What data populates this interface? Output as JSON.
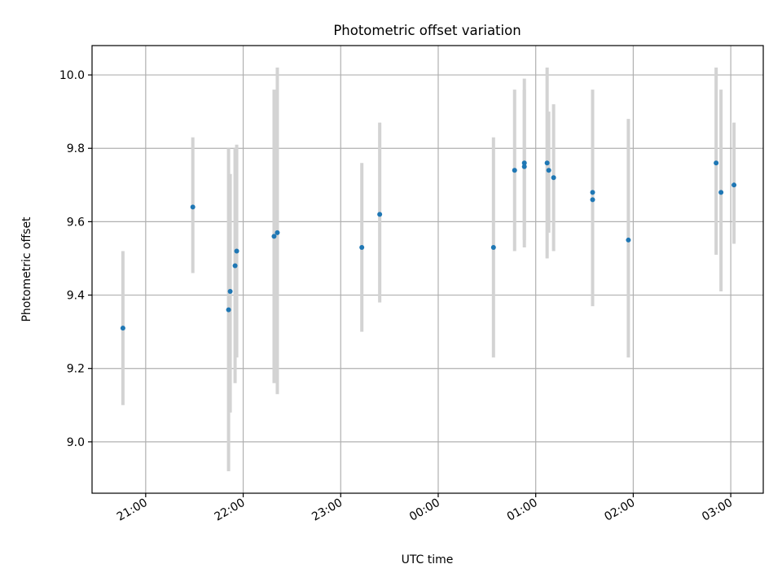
{
  "chart_data": {
    "type": "scatter",
    "title": "Photometric offset variation",
    "xlabel": "UTC time",
    "ylabel": "Photometric offset",
    "x_unit": "UTC time (HH:MM)",
    "xlim": [
      "20:27",
      "03:20"
    ],
    "ylim": [
      8.86,
      10.08
    ],
    "xticks": [
      "21:00",
      "22:00",
      "23:00",
      "00:00",
      "01:00",
      "02:00",
      "03:00"
    ],
    "yticks": [
      "9.0",
      "9.2",
      "9.4",
      "9.6",
      "9.8",
      "10.0"
    ],
    "grid": true,
    "points": [
      {
        "x": "20:46",
        "y": 9.31,
        "err_low": 9.1,
        "err_high": 9.52
      },
      {
        "x": "21:29",
        "y": 9.64,
        "err_low": 9.46,
        "err_high": 9.83
      },
      {
        "x": "21:51",
        "y": 9.36,
        "err_low": 8.92,
        "err_high": 9.8
      },
      {
        "x": "21:52",
        "y": 9.41,
        "err_low": 9.08,
        "err_high": 9.73
      },
      {
        "x": "21:55",
        "y": 9.48,
        "err_low": 9.16,
        "err_high": 9.8
      },
      {
        "x": "21:56",
        "y": 9.52,
        "err_low": 9.23,
        "err_high": 9.81
      },
      {
        "x": "22:19",
        "y": 9.56,
        "err_low": 9.16,
        "err_high": 9.96
      },
      {
        "x": "22:21",
        "y": 9.57,
        "err_low": 9.13,
        "err_high": 10.02
      },
      {
        "x": "23:13",
        "y": 9.53,
        "err_low": 9.3,
        "err_high": 9.76
      },
      {
        "x": "23:24",
        "y": 9.62,
        "err_low": 9.38,
        "err_high": 9.87
      },
      {
        "x": "00:34",
        "y": 9.53,
        "err_low": 9.23,
        "err_high": 9.83
      },
      {
        "x": "00:47",
        "y": 9.74,
        "err_low": 9.52,
        "err_high": 9.96
      },
      {
        "x": "00:53",
        "y": 9.76,
        "err_low": 9.55,
        "err_high": 9.99
      },
      {
        "x": "00:53",
        "y": 9.75,
        "err_low": 9.53,
        "err_high": 9.96
      },
      {
        "x": "01:07",
        "y": 9.76,
        "err_low": 9.5,
        "err_high": 10.02
      },
      {
        "x": "01:08",
        "y": 9.74,
        "err_low": 9.57,
        "err_high": 9.9
      },
      {
        "x": "01:11",
        "y": 9.72,
        "err_low": 9.52,
        "err_high": 9.92
      },
      {
        "x": "01:35",
        "y": 9.68,
        "err_low": 9.37,
        "err_high": 9.96
      },
      {
        "x": "01:35",
        "y": 9.66,
        "err_low": 9.37,
        "err_high": 9.95
      },
      {
        "x": "01:57",
        "y": 9.55,
        "err_low": 9.23,
        "err_high": 9.88
      },
      {
        "x": "02:51",
        "y": 9.76,
        "err_low": 9.51,
        "err_high": 10.02
      },
      {
        "x": "02:54",
        "y": 9.68,
        "err_low": 9.41,
        "err_high": 9.96
      },
      {
        "x": "03:02",
        "y": 9.7,
        "err_low": 9.54,
        "err_high": 9.87
      }
    ],
    "marker_color": "#1f77b4",
    "errorbar_color": "#d3d3d3",
    "grid_color": "#b0b0b0"
  }
}
